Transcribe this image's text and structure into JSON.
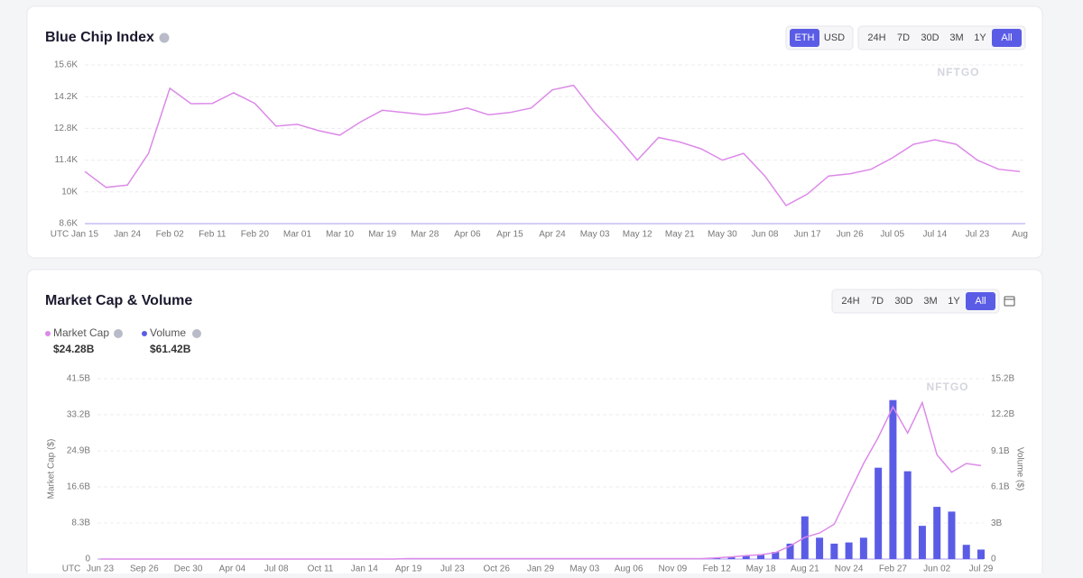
{
  "chart_data": [
    {
      "type": "line",
      "title": "Blue Chip Index",
      "timezone": "UTC",
      "watermark": "NFTGO",
      "toggles": [
        "ETH",
        "USD"
      ],
      "ranges": [
        "24H",
        "7D",
        "30D",
        "3M",
        "1Y",
        "All"
      ],
      "categories": [
        "Jan 15",
        null,
        "Jan 24",
        null,
        "Feb 02",
        null,
        "Feb 11",
        null,
        "Feb 20",
        null,
        "Mar 01",
        null,
        "Mar 10",
        null,
        "Mar 19",
        null,
        "Mar 28",
        null,
        "Apr 06",
        null,
        "Apr 15",
        null,
        "Apr 24",
        null,
        "May 03",
        null,
        "May 12",
        null,
        "May 21",
        null,
        "May 30",
        null,
        "Jun 08",
        null,
        "Jun 17",
        null,
        "Jun 26",
        null,
        "Jul 05",
        null,
        "Jul 14",
        null,
        "Jul 23",
        null,
        "Aug"
      ],
      "values": [
        10900,
        10200,
        10300,
        11700,
        14570,
        13890,
        13900,
        14370,
        13900,
        12900,
        12980,
        12700,
        12500,
        13100,
        13600,
        13500,
        13400,
        13500,
        13700,
        13400,
        13500,
        13700,
        14500,
        14700,
        13500,
        12500,
        11400,
        12400,
        12200,
        11900,
        11400,
        11700,
        10700,
        9400,
        9900,
        10700,
        10800,
        11000,
        11500,
        12100,
        12300,
        12100,
        11400,
        11000,
        10900
      ],
      "color": "#dc8ae8",
      "ylim": [
        8600,
        15600
      ],
      "yticks": [
        {
          "value": 8600,
          "label": "8.6K"
        },
        {
          "value": 10000,
          "label": "10K"
        },
        {
          "value": 11400,
          "label": "11.4K"
        },
        {
          "value": 12800,
          "label": "12.8K"
        },
        {
          "value": 14200,
          "label": "14.2K"
        },
        {
          "value": 15600,
          "label": "15.6K"
        }
      ],
      "grid": true
    },
    {
      "type": "combo",
      "title": "Market Cap & Volume",
      "timezone": "UTC",
      "watermark": "NFTGO",
      "ranges": [
        "24H",
        "7D",
        "30D",
        "3M",
        "1Y",
        "All"
      ],
      "legend_values": [
        "$24.28B",
        "$61.42B"
      ],
      "ylabel": "Market Cap ($)",
      "y2label": "Volume ($)",
      "categories": [
        "Jun 23",
        null,
        null,
        "Sep 26",
        null,
        null,
        "Dec 30",
        null,
        null,
        "Apr 04",
        null,
        null,
        "Jul 08",
        null,
        null,
        "Oct 11",
        null,
        null,
        "Jan 14",
        null,
        null,
        "Apr 19",
        null,
        null,
        "Jul 23",
        null,
        null,
        "Oct 26",
        null,
        null,
        "Jan 29",
        null,
        null,
        "May 03",
        null,
        null,
        "Aug 06",
        null,
        null,
        "Nov 09",
        null,
        null,
        "Feb 12",
        null,
        null,
        "May 18",
        null,
        null,
        "Aug 21",
        null,
        null,
        "Nov 24",
        null,
        null,
        "Feb 27",
        null,
        null,
        "Jun 02",
        null,
        null,
        "Jul 29"
      ],
      "series": [
        {
          "name": "Market Cap",
          "type": "line",
          "color": "#dc8ae8",
          "values": [
            0,
            0,
            0,
            0,
            0,
            0,
            0,
            0,
            0,
            0,
            0,
            0,
            0,
            0,
            0,
            0,
            0,
            0,
            0,
            0,
            0,
            0.1,
            0.1,
            0.1,
            0.1,
            0.1,
            0.1,
            0.1,
            0.1,
            0.1,
            0.1,
            0.1,
            0.1,
            0.1,
            0.1,
            0.1,
            0.1,
            0.1,
            0.1,
            0.1,
            0.1,
            0.1,
            0.3,
            0.5,
            0.8,
            1,
            1.5,
            3,
            5,
            6,
            8,
            15,
            22,
            28,
            35,
            29,
            36,
            24,
            20,
            22,
            21.5
          ]
        },
        {
          "name": "Volume",
          "type": "bar",
          "axis": "y2",
          "color": "#5b5ce6",
          "values": [
            0,
            0,
            0,
            0,
            0,
            0,
            0,
            0,
            0,
            0,
            0,
            0,
            0,
            0,
            0,
            0,
            0,
            0,
            0,
            0,
            0,
            0,
            0,
            0,
            0,
            0,
            0,
            0,
            0,
            0,
            0,
            0,
            0,
            0,
            0,
            0,
            0,
            0,
            0,
            0,
            0,
            0,
            0.1,
            0.2,
            0.3,
            0.4,
            0.6,
            1.3,
            3.6,
            1.8,
            1.3,
            1.4,
            1.8,
            7.7,
            13.4,
            7.4,
            2.8,
            4.4,
            4,
            1.2,
            0.8
          ]
        }
      ],
      "ylim": [
        0,
        41.5
      ],
      "yticks": [
        0,
        {
          "value": 8.3,
          "label": "8.3B"
        },
        {
          "value": 16.6,
          "label": "16.6B"
        },
        {
          "value": 24.9,
          "label": "24.9B"
        },
        {
          "value": 33.2,
          "label": "33.2B"
        },
        {
          "value": 41.5,
          "label": "41.5B"
        }
      ],
      "y2lim": [
        0,
        15.2
      ],
      "y2ticks": [
        0,
        {
          "value": 3,
          "label": "3B"
        },
        {
          "value": 6.1,
          "label": "6.1B"
        },
        {
          "value": 9.1,
          "label": "9.1B"
        },
        {
          "value": 12.2,
          "label": "12.2B"
        },
        {
          "value": 15.2,
          "label": "15.2B"
        }
      ],
      "grid": true
    }
  ]
}
